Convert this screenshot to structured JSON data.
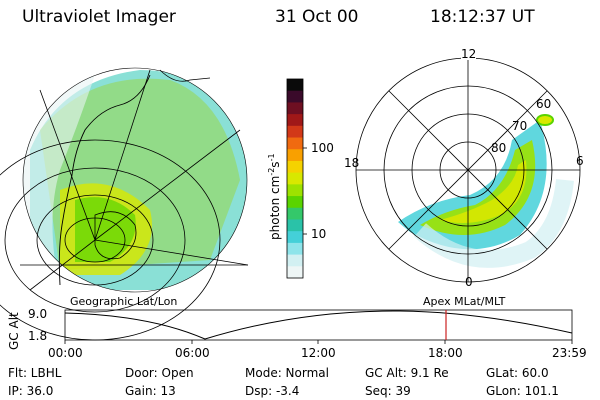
{
  "header": {
    "instrument": "Ultraviolet Imager",
    "date": "31 Oct 00",
    "time": "18:12:37 UT"
  },
  "colorbar": {
    "unit_label": "photon cm",
    "unit_sup1": "-2",
    "unit_mid": "s",
    "unit_sup2": "-1",
    "ticks": [
      "100",
      "10"
    ],
    "colors": [
      "#0a0a0a",
      "#3a0a2a",
      "#6e0f22",
      "#a01818",
      "#d23818",
      "#f06a10",
      "#f9a000",
      "#f5d200",
      "#d8e800",
      "#9de200",
      "#5ad400",
      "#34c86a",
      "#2ac2a8",
      "#44d0d8",
      "#8ee4ea",
      "#d2f0f2",
      "#eef6f6"
    ]
  },
  "left_panel": {
    "caption": "Geographic Lat/Lon"
  },
  "right_panel": {
    "caption": "Apex MLat/MLT",
    "mlt_labels": [
      "12",
      "18",
      "6",
      "0"
    ],
    "lat_labels": [
      "60",
      "70",
      "80"
    ]
  },
  "timeline": {
    "axis_label": "GC Alt",
    "y_ticks": [
      "9.0",
      "1.8"
    ],
    "x_ticks": [
      "00:00",
      "06:00",
      "12:00",
      "18:00",
      "23:59"
    ],
    "marker_time": "18:12",
    "marker_color": "#cc2222"
  },
  "info": {
    "flt": "Flt: LBHL",
    "door": "Door: Open",
    "mode": "Mode: Normal",
    "gcalt": "GC Alt: 9.1 Re",
    "glat": "GLat:  60.0",
    "ip": "IP: 36.0",
    "gain": "Gain: 13",
    "dsp": "Dsp:   -3.4",
    "seq": "Seq: 39",
    "glon": "GLon: 101.1"
  }
}
